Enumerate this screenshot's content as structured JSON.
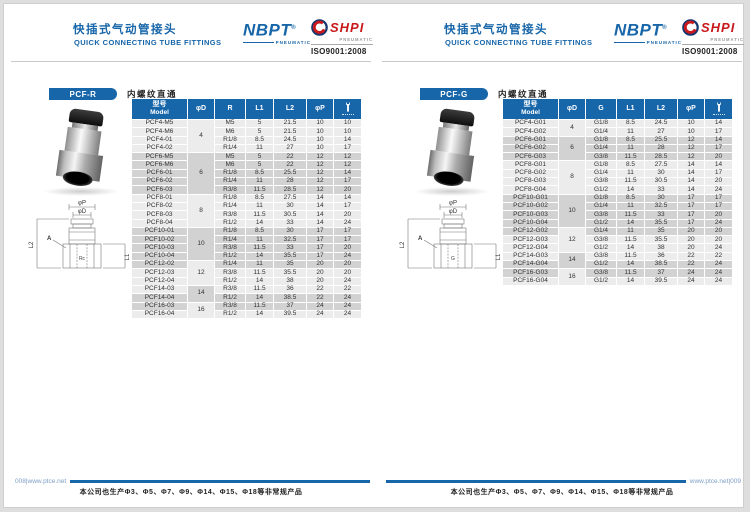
{
  "colors": {
    "accent": "#1766a9",
    "red": "#c8191c",
    "row_light": "#ececec",
    "row_dark": "#d2d2d2",
    "text": "#333333"
  },
  "header": {
    "title_zh": "快插式气动管接头",
    "title_en": "QUICK CONNECTING TUBE FITTINGS",
    "brand": "NBPT",
    "brand_reg": "®",
    "brand_sub": "PNEUMATIC",
    "brand2": "SHPI",
    "brand2_sub": "PNEUMATIC",
    "iso": "ISO9001:2008"
  },
  "footer": {
    "left_label": "008|www.ptce.net",
    "right_label": "www.ptce.net|009",
    "note": "本公司也生产Φ3、Φ5、Φ7、Φ9、Φ14、Φ15、Φ18等非常规产品"
  },
  "panels": [
    {
      "badge": "PCF-R",
      "subtitle": "内螺纹直通",
      "diagram": {
        "p": "φP",
        "d": "φD",
        "l1": "L1",
        "l2": "L2",
        "a": "A",
        "thread": "Rc"
      },
      "table": {
        "header_model_zh": "型号",
        "header_model_en": "Model",
        "header_d": "φD",
        "header_thread": "R",
        "header_l1": "L1",
        "header_l2": "L2",
        "header_p": "φP",
        "groups": [
          {
            "d": "4",
            "span": 4
          },
          {
            "d": "6",
            "span": 5
          },
          {
            "d": "8",
            "span": 4
          },
          {
            "d": "10",
            "span": 4
          },
          {
            "d": "12",
            "span": 3
          },
          {
            "d": "14",
            "span": 2
          },
          {
            "d": "16",
            "span": 2
          }
        ],
        "bands": [
          4,
          5,
          4,
          5,
          3,
          2,
          1
        ],
        "rows": [
          [
            "PCF4-M5",
            "M5",
            "5",
            "21.5",
            "10",
            "10"
          ],
          [
            "PCF4-M6",
            "M6",
            "5",
            "21.5",
            "10",
            "10"
          ],
          [
            "PCF4-01",
            "R1/8",
            "8.5",
            "24.5",
            "10",
            "14"
          ],
          [
            "PCF4-02",
            "R1/4",
            "11",
            "27",
            "10",
            "17"
          ],
          [
            "PCF6-M5",
            "M5",
            "5",
            "22",
            "12",
            "12"
          ],
          [
            "PCF6-M6",
            "M6",
            "5",
            "22",
            "12",
            "12"
          ],
          [
            "PCF6-01",
            "R1/8",
            "8.5",
            "25.5",
            "12",
            "14"
          ],
          [
            "PCF6-02",
            "R1/4",
            "11",
            "28",
            "12",
            "17"
          ],
          [
            "PCF6-03",
            "R3/8",
            "11.5",
            "28.5",
            "12",
            "20"
          ],
          [
            "PCF8-01",
            "R1/8",
            "8.5",
            "27.5",
            "14",
            "14"
          ],
          [
            "PCF8-02",
            "R1/4",
            "11",
            "30",
            "14",
            "17"
          ],
          [
            "PCF8-03",
            "R3/8",
            "11.5",
            "30.5",
            "14",
            "20"
          ],
          [
            "PCF8-04",
            "R1/2",
            "14",
            "33",
            "14",
            "24"
          ],
          [
            "PCF10-01",
            "R1/8",
            "8.5",
            "30",
            "17",
            "17"
          ],
          [
            "PCF10-02",
            "R1/4",
            "11",
            "32.5",
            "17",
            "17"
          ],
          [
            "PCF10-03",
            "R3/8",
            "11.5",
            "33",
            "17",
            "20"
          ],
          [
            "PCF10-04",
            "R1/2",
            "14",
            "35.5",
            "17",
            "24"
          ],
          [
            "PCF12-02",
            "R1/4",
            "11",
            "35",
            "20",
            "20"
          ],
          [
            "PCF12-03",
            "R3/8",
            "11.5",
            "35.5",
            "20",
            "20"
          ],
          [
            "PCF12-04",
            "R1/2",
            "14",
            "38",
            "20",
            "24"
          ],
          [
            "PCF14-03",
            "R3/8",
            "11.5",
            "36",
            "22",
            "22"
          ],
          [
            "PCF14-04",
            "R1/2",
            "14",
            "38.5",
            "22",
            "24"
          ],
          [
            "PCF16-03",
            "R3/8",
            "11.5",
            "37",
            "24",
            "24"
          ],
          [
            "PCF16-04",
            "R1/2",
            "14",
            "39.5",
            "24",
            "24"
          ]
        ]
      }
    },
    {
      "badge": "PCF-G",
      "subtitle": "内螺纹直通",
      "diagram": {
        "p": "φP",
        "d": "φD",
        "l1": "L1",
        "l2": "L2",
        "a": "A",
        "thread": "G"
      },
      "table": {
        "header_model_zh": "型号",
        "header_model_en": "Model",
        "header_d": "φD",
        "header_thread": "G",
        "header_l1": "L1",
        "header_l2": "L2",
        "header_p": "φP",
        "groups": [
          {
            "d": "4",
            "span": 2
          },
          {
            "d": "6",
            "span": 3
          },
          {
            "d": "8",
            "span": 4
          },
          {
            "d": "10",
            "span": 4
          },
          {
            "d": "12",
            "span": 3
          },
          {
            "d": "14",
            "span": 2
          },
          {
            "d": "16",
            "span": 2
          }
        ],
        "bands": [
          2,
          3,
          4,
          5,
          3,
          2,
          1
        ],
        "rows": [
          [
            "PCF4-G01",
            "G1/8",
            "8.5",
            "24.5",
            "10",
            "14"
          ],
          [
            "PCF4-G02",
            "G1/4",
            "11",
            "27",
            "10",
            "17"
          ],
          [
            "PCF6-G01",
            "G1/8",
            "8.5",
            "25.5",
            "12",
            "14"
          ],
          [
            "PCF6-G02",
            "G1/4",
            "11",
            "28",
            "12",
            "17"
          ],
          [
            "PCF6-G03",
            "G3/8",
            "11.5",
            "28.5",
            "12",
            "20"
          ],
          [
            "PCF8-G01",
            "G1/8",
            "8.5",
            "27.5",
            "14",
            "14"
          ],
          [
            "PCF8-G02",
            "G1/4",
            "11",
            "30",
            "14",
            "17"
          ],
          [
            "PCF8-G03",
            "G3/8",
            "11.5",
            "30.5",
            "14",
            "20"
          ],
          [
            "PCF8-G04",
            "G1/2",
            "14",
            "33",
            "14",
            "24"
          ],
          [
            "PCF10-G01",
            "G1/8",
            "8.5",
            "30",
            "17",
            "17"
          ],
          [
            "PCF10-G02",
            "G1/4",
            "11",
            "32.5",
            "17",
            "17"
          ],
          [
            "PCF10-G03",
            "G3/8",
            "11.5",
            "33",
            "17",
            "20"
          ],
          [
            "PCF10-G04",
            "G1/2",
            "14",
            "35.5",
            "17",
            "24"
          ],
          [
            "PCF12-G02",
            "G1/4",
            "11",
            "35",
            "20",
            "20"
          ],
          [
            "PCF12-G03",
            "G3/8",
            "11.5",
            "35.5",
            "20",
            "20"
          ],
          [
            "PCF12-G04",
            "G1/2",
            "14",
            "38",
            "20",
            "24"
          ],
          [
            "PCF14-G03",
            "G3/8",
            "11.5",
            "36",
            "22",
            "22"
          ],
          [
            "PCF14-G04",
            "G1/2",
            "14",
            "38.5",
            "22",
            "24"
          ],
          [
            "PCF16-G03",
            "G3/8",
            "11.5",
            "37",
            "24",
            "24"
          ],
          [
            "PCF16-G04",
            "G1/2",
            "14",
            "39.5",
            "24",
            "24"
          ]
        ]
      }
    }
  ]
}
